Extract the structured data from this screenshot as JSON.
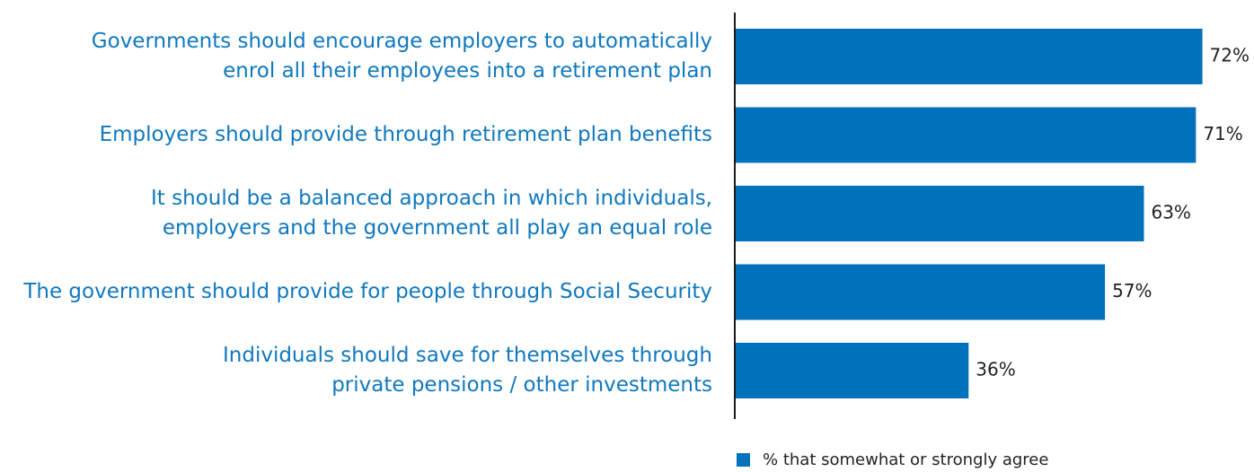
{
  "chart_data": {
    "type": "bar",
    "orientation": "horizontal",
    "categories": [
      [
        "Governments should encourage employers to automatically",
        "enrol all their employees into a retirement plan"
      ],
      [
        "Employers should provide through retirement plan benefits"
      ],
      [
        "It should be a balanced approach in which individuals,",
        "employers and the government all play an equal role"
      ],
      [
        "The government should provide for people through Social Security"
      ],
      [
        "Individuals should save for themselves through",
        "private pensions / other investments"
      ]
    ],
    "series": [
      {
        "name": "% that somewhat or strongly agree",
        "values": [
          72,
          71,
          63,
          57,
          36
        ]
      }
    ],
    "value_labels": [
      "72%",
      "71%",
      "63%",
      "57%",
      "36%"
    ],
    "xlim": [
      0,
      100
    ],
    "grid": false,
    "legend": "bottom-right"
  },
  "colors": {
    "bar": "#0072bc",
    "category_text": "#0f78be",
    "value_text": "#222222",
    "axis": "#1a1a1a"
  }
}
